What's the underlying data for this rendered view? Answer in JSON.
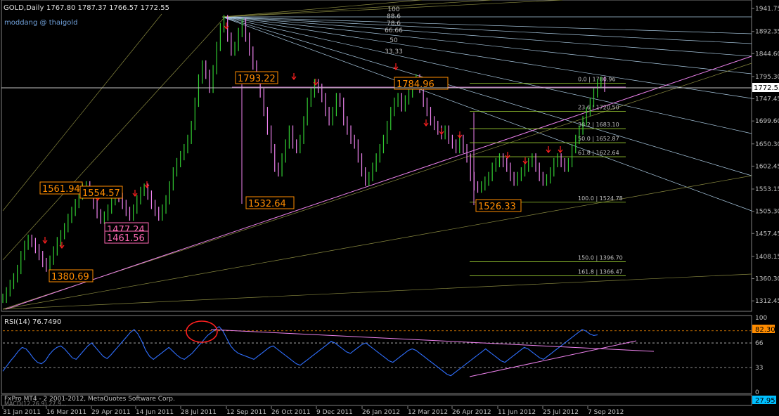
{
  "header": {
    "title": "GOLD,Daily",
    "ohlc": "1767.80 1787.37 1766.57 1772.55",
    "watermark": "moddang @ thaigold"
  },
  "colors": {
    "background": "#000000",
    "bull": "#32cd32",
    "bear": "#ee82ee",
    "gann": "#a8c8e0",
    "fib": "#9acd32",
    "trend": "#ee82ee",
    "box": "#ff8c00",
    "rsi": "#2f6fff",
    "arrow": "#ff2020",
    "price_tag": "#ffffff"
  },
  "chart_data": [
    {
      "type": "line",
      "name": "price",
      "ylim": [
        1290,
        1960
      ],
      "ylabel": "",
      "y_ticks": [
        1941.75,
        1892.35,
        1844.6,
        1795.3,
        1747.45,
        1699.6,
        1650.3,
        1602.45,
        1553.15,
        1505.3,
        1457.45,
        1408.15,
        1360.3,
        1312.45
      ],
      "x_ticks": [
        "31 Jan 2011",
        "16 Mar 2011",
        "29 Apr 2011",
        "14 Jun 2011",
        "28 Jul 2011",
        "12 Sep 2011",
        "26 Oct 2011",
        "9 Dec 2011",
        "26 Jan 2012",
        "12 Mar 2012",
        "26 Apr 2012",
        "11 Jun 2012",
        "25 Jul 2012",
        "7 Sep 2012"
      ],
      "current_price": "1772.55",
      "bars": [
        1318,
        1332,
        1348,
        1362,
        1380,
        1410,
        1432,
        1445,
        1438,
        1425,
        1410,
        1395,
        1385,
        1400,
        1420,
        1440,
        1455,
        1470,
        1490,
        1505,
        1522,
        1540,
        1555,
        1560,
        1545,
        1520,
        1500,
        1488,
        1495,
        1510,
        1528,
        1542,
        1535,
        1520,
        1505,
        1495,
        1510,
        1530,
        1548,
        1555,
        1540,
        1520,
        1505,
        1495,
        1510,
        1530,
        1560,
        1590,
        1610,
        1625,
        1640,
        1660,
        1690,
        1740,
        1790,
        1820,
        1800,
        1770,
        1810,
        1860,
        1900,
        1918,
        1880,
        1850,
        1860,
        1890,
        1910,
        1880,
        1850,
        1820,
        1790,
        1760,
        1720,
        1680,
        1640,
        1600,
        1590,
        1620,
        1650,
        1680,
        1650,
        1640,
        1660,
        1700,
        1740,
        1760,
        1780,
        1770,
        1750,
        1720,
        1700,
        1720,
        1750,
        1740,
        1700,
        1680,
        1660,
        1650,
        1620,
        1590,
        1570,
        1580,
        1600,
        1620,
        1640,
        1660,
        1690,
        1720,
        1740,
        1750,
        1730,
        1745,
        1760,
        1780,
        1790,
        1770,
        1740,
        1720,
        1700,
        1690,
        1680,
        1670,
        1680,
        1660,
        1650,
        1640,
        1660,
        1640,
        1620,
        1580,
        1560,
        1555,
        1560,
        1570,
        1580,
        1600,
        1610,
        1620,
        1610,
        1600,
        1580,
        1570,
        1580,
        1590,
        1600,
        1610,
        1620,
        1600,
        1580,
        1570,
        1575,
        1590,
        1610,
        1620,
        1610,
        1600,
        1610,
        1640,
        1660,
        1680,
        1700,
        1720,
        1740,
        1760,
        1780,
        1785,
        1772
      ],
      "annotations": [
        "1793.22",
        "1784.96",
        "1561.94",
        "1554.57",
        "1532.64",
        "1477.24",
        "1461.56",
        "1380.69",
        "1526.33"
      ],
      "gann_labels": [
        "100",
        "88.6",
        "78.6",
        "66.66",
        "50",
        "33.33"
      ],
      "fib_levels": [
        {
          "label": "0.0 | 1780.96",
          "value": 1780.96
        },
        {
          "label": "23.6 | 1720.50",
          "value": 1720.5
        },
        {
          "label": "38.2 | 1683.10",
          "value": 1683.1
        },
        {
          "label": "50.0 | 1652.87",
          "value": 1652.87
        },
        {
          "label": "61.8 | 1622.64",
          "value": 1622.64
        },
        {
          "label": "100.0 | 1524.78",
          "value": 1524.78
        },
        {
          "label": "150.0 | 1396.70",
          "value": 1396.7
        },
        {
          "label": "161.8 | 1366.47",
          "value": 1366.47
        }
      ]
    },
    {
      "type": "line",
      "name": "RSI",
      "title": "RSI(14) 76.7490",
      "ylim": [
        0,
        100
      ],
      "y_ticks": [
        "100",
        "66",
        "33",
        "0"
      ],
      "level_tag": "82.30",
      "values": [
        28,
        35,
        42,
        48,
        55,
        60,
        58,
        52,
        45,
        40,
        38,
        42,
        50,
        56,
        60,
        62,
        58,
        52,
        46,
        44,
        50,
        56,
        62,
        66,
        60,
        54,
        48,
        45,
        50,
        56,
        62,
        68,
        74,
        80,
        84,
        78,
        68,
        56,
        48,
        44,
        48,
        52,
        56,
        60,
        55,
        50,
        46,
        44,
        48,
        52,
        58,
        64,
        70,
        76,
        80,
        84,
        88,
        82,
        72,
        62,
        56,
        52,
        50,
        48,
        46,
        44,
        48,
        52,
        56,
        60,
        62,
        58,
        54,
        50,
        46,
        42,
        38,
        36,
        40,
        44,
        48,
        52,
        56,
        60,
        64,
        68,
        66,
        62,
        58,
        54,
        52,
        56,
        60,
        64,
        66,
        62,
        58,
        54,
        50,
        46,
        42,
        40,
        44,
        48,
        52,
        56,
        58,
        56,
        52,
        48,
        44,
        40,
        36,
        32,
        28,
        24,
        22,
        26,
        30,
        34,
        38,
        42,
        46,
        50,
        54,
        58,
        54,
        50,
        46,
        42,
        40,
        44,
        48,
        52,
        56,
        60,
        58,
        54,
        50,
        46,
        44,
        48,
        52,
        56,
        60,
        64,
        68,
        72,
        76,
        80,
        84,
        82,
        78,
        76,
        77
      ]
    }
  ],
  "footer": {
    "copyright": "FxPro MT4 - 2 2001-2012, MetaQuotes Software Corp.",
    "macd_label": "MACD(12,26,9) 27.9...",
    "macd_tag": "27.95"
  }
}
